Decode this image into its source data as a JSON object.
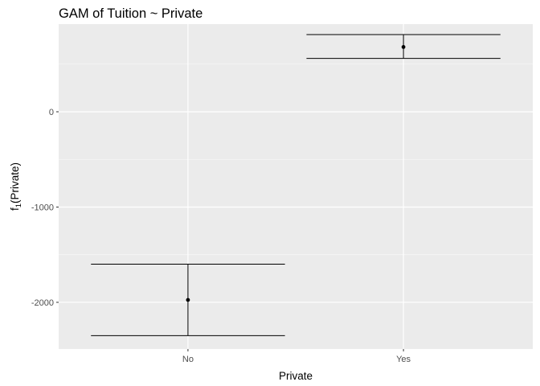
{
  "chart_data": {
    "type": "errorbar",
    "title": "GAM of Tuition ~ Private",
    "xlabel": "Private",
    "ylabel": {
      "base": "f",
      "sub": "1",
      "rest": "(Private)"
    },
    "categories": [
      "No",
      "Yes"
    ],
    "values": [
      -1975,
      680
    ],
    "lower": [
      -2350,
      560
    ],
    "upper": [
      -1600,
      810
    ],
    "ylim": [
      -2490,
      920
    ],
    "yticks": [
      0,
      -1000,
      -2000
    ],
    "ytick_labels": [
      "0",
      "-1000",
      "-2000"
    ],
    "grid": true,
    "colors": {
      "panel": "#ebebeb",
      "grid_major": "#ffffff",
      "grid_minor": "#f7f7f7",
      "mark": "#000000",
      "tick_text": "#4d4d4d"
    }
  }
}
